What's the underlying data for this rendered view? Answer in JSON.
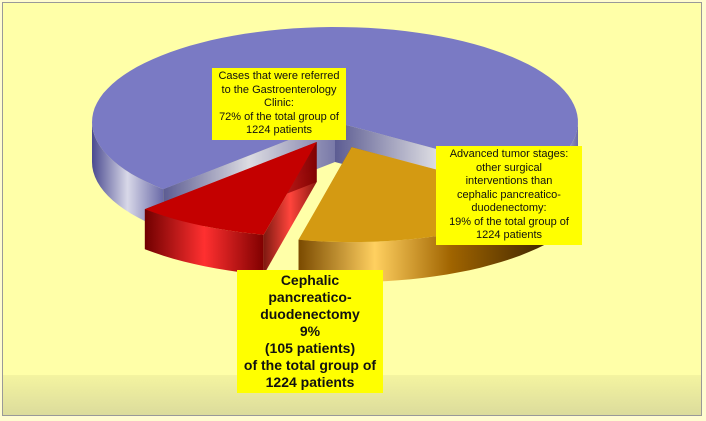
{
  "chart_data": {
    "type": "pie",
    "values": [
      72,
      19,
      9
    ],
    "value_labels": [
      [
        "Cases that were referred",
        "to the Gastroenterology",
        "Clinic:",
        "72% of the total group of",
        "1224  patients"
      ],
      [
        "Advanced tumor stages:",
        "other surgical",
        "interventions than",
        "cephalic pancreatico-",
        "duodenectomy:",
        "19% of the total group of",
        "1224 patients"
      ],
      [
        "Cephalic",
        "pancreatico-",
        "duodenectomy",
        "9%",
        "(105 patients)",
        "of the total group of",
        "1224 patients"
      ]
    ],
    "colors": [
      "#7a7ac4",
      "#d49a12",
      "#c40000"
    ]
  }
}
